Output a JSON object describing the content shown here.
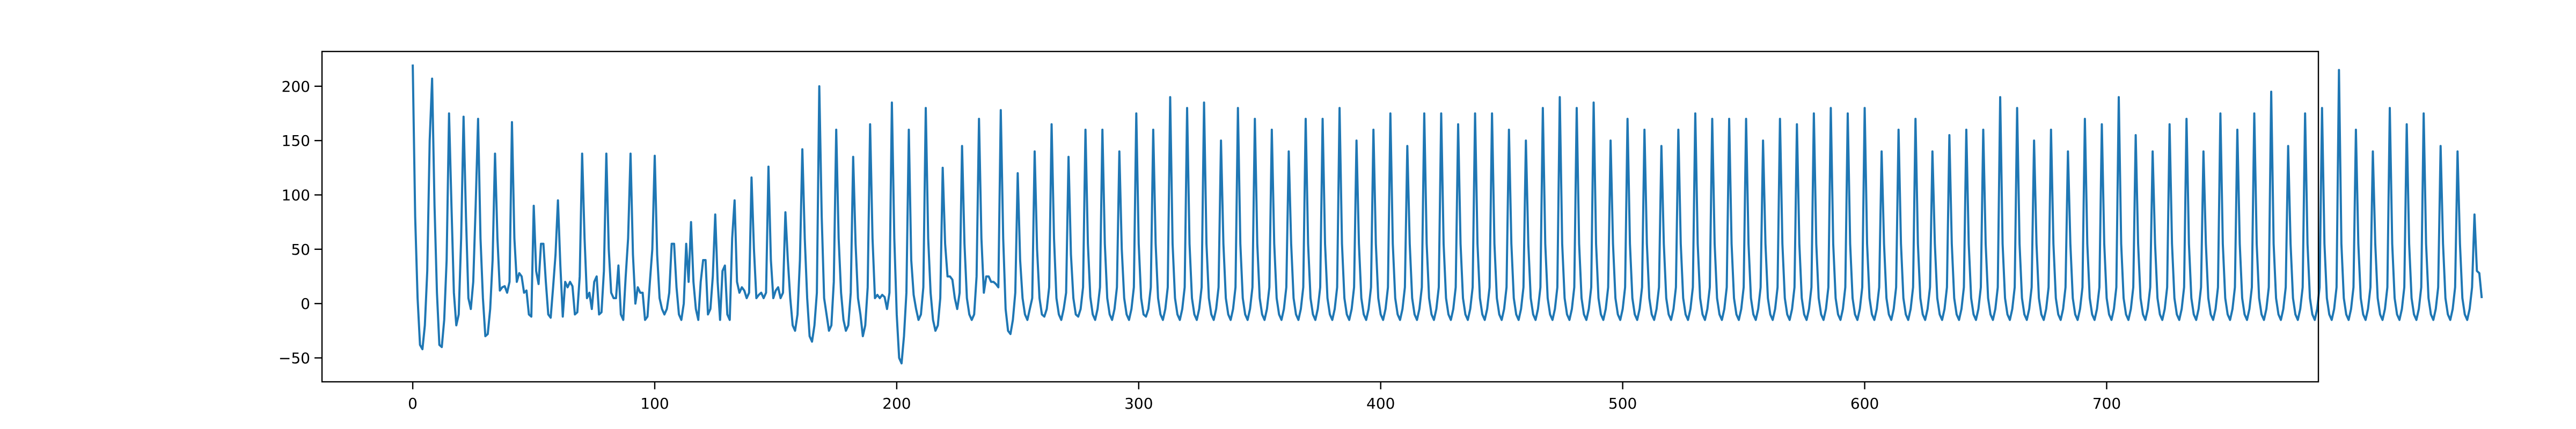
{
  "chart_data": {
    "type": "line",
    "title": "",
    "xlabel": "",
    "ylabel": "",
    "xlim": [
      -37.5,
      787.5
    ],
    "ylim": [
      -72,
      232
    ],
    "grid": false,
    "legend": "none",
    "line_color": "#1f77b4",
    "x_ticks": [
      {
        "value": 0,
        "label": "0"
      },
      {
        "value": 100,
        "label": "100"
      },
      {
        "value": 200,
        "label": "200"
      },
      {
        "value": 300,
        "label": "300"
      },
      {
        "value": 400,
        "label": "400"
      },
      {
        "value": 500,
        "label": "500"
      },
      {
        "value": 600,
        "label": "600"
      },
      {
        "value": 700,
        "label": "700"
      }
    ],
    "y_ticks": [
      {
        "value": -50,
        "label": "−50"
      },
      {
        "value": 0,
        "label": "0"
      },
      {
        "value": 50,
        "label": "50"
      },
      {
        "value": 100,
        "label": "100"
      },
      {
        "value": 150,
        "label": "150"
      },
      {
        "value": 200,
        "label": "200"
      }
    ],
    "series": [
      {
        "x_start": 0,
        "x_step": 1,
        "values": [
          220,
          80,
          5,
          -38,
          -42,
          -20,
          30,
          150,
          207,
          90,
          10,
          -38,
          -40,
          -15,
          40,
          175,
          90,
          10,
          -20,
          -10,
          60,
          172,
          80,
          5,
          -5,
          20,
          90,
          170,
          60,
          5,
          -30,
          -28,
          -5,
          40,
          138,
          60,
          12,
          15,
          16,
          10,
          20,
          167,
          60,
          20,
          28,
          25,
          10,
          12,
          -10,
          -12,
          90,
          30,
          18,
          55,
          55,
          20,
          -10,
          -13,
          15,
          45,
          95,
          35,
          -12,
          20,
          15,
          20,
          16,
          -10,
          -8,
          25,
          138,
          60,
          5,
          10,
          -5,
          20,
          25,
          -10,
          -8,
          30,
          138,
          50,
          10,
          5,
          5,
          35,
          -10,
          -15,
          25,
          60,
          138,
          45,
          0,
          15,
          10,
          10,
          -15,
          -12,
          20,
          50,
          136,
          45,
          5,
          -5,
          -10,
          -5,
          10,
          55,
          55,
          15,
          -10,
          -15,
          0,
          55,
          20,
          75,
          20,
          -5,
          -15,
          20,
          40,
          40,
          -10,
          -5,
          25,
          82,
          20,
          -15,
          30,
          35,
          -10,
          -15,
          60,
          95,
          20,
          10,
          15,
          12,
          5,
          10,
          116,
          50,
          5,
          8,
          10,
          5,
          10,
          126,
          40,
          5,
          12,
          15,
          5,
          10,
          84,
          40,
          5,
          -20,
          -25,
          -10,
          40,
          142,
          60,
          5,
          -30,
          -35,
          -20,
          10,
          200,
          80,
          5,
          -10,
          -25,
          -20,
          20,
          160,
          60,
          10,
          -15,
          -25,
          -20,
          10,
          135,
          55,
          5,
          -10,
          -30,
          -20,
          15,
          165,
          60,
          5,
          8,
          5,
          8,
          6,
          -5,
          10,
          185,
          60,
          -10,
          -50,
          -55,
          -30,
          10,
          160,
          40,
          8,
          -5,
          -15,
          -10,
          15,
          180,
          60,
          10,
          -15,
          -25,
          -20,
          5,
          125,
          55,
          25,
          25,
          22,
          5,
          -5,
          10,
          145,
          55,
          5,
          -10,
          -15,
          -10,
          25,
          170,
          60,
          10,
          25,
          25,
          20,
          20,
          18,
          15,
          178,
          60,
          -5,
          -25,
          -28,
          -15,
          10,
          120,
          40,
          5,
          -10,
          -15,
          -5,
          5,
          140,
          50,
          5,
          -10,
          -12,
          -5,
          15,
          165,
          60,
          5,
          -10,
          -15,
          -5,
          10,
          135,
          45,
          5,
          -10,
          -12,
          -5,
          15,
          160,
          55,
          6,
          -10,
          -15,
          -5,
          15,
          160,
          55,
          5,
          -10,
          -15,
          -5,
          15,
          140,
          50,
          5,
          -10,
          -15,
          -5,
          15,
          175,
          55,
          5,
          -10,
          -12,
          -5,
          15,
          160,
          55,
          5,
          -10,
          -15,
          -5,
          15,
          190,
          55,
          5,
          -10,
          -15,
          -5,
          15,
          180,
          55,
          5,
          -10,
          -15,
          -5,
          15,
          185,
          55,
          5,
          -10,
          -15,
          -5,
          15,
          150,
          55,
          5,
          -10,
          -15,
          -5,
          15,
          180,
          55,
          5,
          -10,
          -15,
          -5,
          15,
          170,
          55,
          5,
          -10,
          -15,
          -5,
          15,
          160,
          55,
          5,
          -10,
          -15,
          -5,
          15,
          140,
          55,
          5,
          -10,
          -15,
          -5,
          15,
          170,
          55,
          5,
          -10,
          -15,
          -5,
          15,
          170,
          55,
          5,
          -10,
          -15,
          -5,
          15,
          180,
          55,
          5,
          -10,
          -15,
          -5,
          15,
          150,
          55,
          5,
          -10,
          -15,
          -5,
          15,
          160,
          55,
          5,
          -10,
          -15,
          -5,
          15,
          175,
          55,
          5,
          -10,
          -15,
          -5,
          15,
          145,
          55,
          5,
          -10,
          -15,
          -5,
          15,
          175,
          55,
          5,
          -10,
          -15,
          -5,
          15,
          175,
          55,
          5,
          -10,
          -15,
          -5,
          15,
          165,
          55,
          5,
          -10,
          -15,
          -5,
          15,
          175,
          55,
          5,
          -10,
          -15,
          -5,
          15,
          175,
          55,
          5,
          -10,
          -15,
          -5,
          15,
          160,
          55,
          5,
          -10,
          -15,
          -5,
          15,
          150,
          55,
          5,
          -10,
          -15,
          -5,
          15,
          180,
          55,
          5,
          -10,
          -15,
          -5,
          15,
          190,
          55,
          5,
          -10,
          -15,
          -5,
          15,
          180,
          55,
          5,
          -10,
          -15,
          -5,
          15,
          185,
          55,
          5,
          -10,
          -15,
          -5,
          15,
          150,
          55,
          5,
          -10,
          -15,
          -5,
          15,
          170,
          55,
          5,
          -10,
          -15,
          -5,
          15,
          160,
          55,
          5,
          -10,
          -15,
          -5,
          15,
          145,
          55,
          5,
          -10,
          -15,
          -5,
          15,
          160,
          55,
          5,
          -10,
          -15,
          -5,
          15,
          175,
          55,
          5,
          -10,
          -15,
          -5,
          15,
          170,
          55,
          5,
          -10,
          -15,
          -5,
          15,
          170,
          55,
          5,
          -10,
          -15,
          -5,
          15,
          170,
          55,
          5,
          -10,
          -15,
          -5,
          15,
          150,
          55,
          5,
          -10,
          -15,
          -5,
          15,
          170,
          55,
          5,
          -10,
          -15,
          -5,
          15,
          165,
          55,
          5,
          -10,
          -15,
          -5,
          15,
          175,
          55,
          5,
          -10,
          -15,
          -5,
          15,
          180,
          55,
          5,
          -10,
          -15,
          -5,
          15,
          175,
          55,
          5,
          -10,
          -15,
          -5,
          15,
          180,
          55,
          5,
          -10,
          -15,
          -5,
          15,
          140,
          55,
          5,
          -10,
          -15,
          -5,
          15,
          160,
          55,
          5,
          -10,
          -15,
          -5,
          15,
          170,
          55,
          5,
          -10,
          -15,
          -5,
          15,
          140,
          55,
          5,
          -10,
          -15,
          -5,
          15,
          155,
          55,
          5,
          -10,
          -15,
          -5,
          15,
          160,
          55,
          5,
          -10,
          -15,
          -5,
          15,
          160,
          55,
          5,
          -10,
          -15,
          -5,
          15,
          190,
          55,
          5,
          -10,
          -15,
          -5,
          15,
          180,
          55,
          5,
          -10,
          -15,
          -5,
          15,
          150,
          55,
          5,
          -10,
          -15,
          -5,
          15,
          160,
          55,
          5,
          -10,
          -15,
          -5,
          15,
          140,
          55,
          5,
          -10,
          -15,
          -5,
          15,
          170,
          55,
          5,
          -10,
          -15,
          -5,
          15,
          165,
          55,
          5,
          -10,
          -15,
          -5,
          15,
          190,
          55,
          5,
          -10,
          -15,
          -5,
          15,
          155,
          55,
          5,
          -10,
          -15,
          -5,
          15,
          140,
          55,
          5,
          -10,
          -15,
          -5,
          15,
          165,
          55,
          5,
          -10,
          -15,
          -5,
          15,
          170,
          55,
          5,
          -10,
          -15,
          -5,
          15,
          140,
          55,
          5,
          -10,
          -15,
          -5,
          15,
          175,
          55,
          5,
          -10,
          -15,
          -5,
          15,
          160,
          55,
          5,
          -10,
          -15,
          -5,
          15,
          175,
          55,
          5,
          -10,
          -15,
          -5,
          15,
          195,
          55,
          5,
          -10,
          -15,
          -5,
          15,
          145,
          55,
          5,
          -10,
          -15,
          -5,
          15,
          175,
          55,
          5,
          -10,
          -15,
          -5,
          15,
          180,
          55,
          5,
          -10,
          -15,
          -5,
          15,
          215,
          55,
          5,
          -10,
          -15,
          -5,
          15,
          160,
          55,
          5,
          -10,
          -15,
          -5,
          15,
          140,
          55,
          5,
          -10,
          -15,
          -5,
          15,
          180,
          55,
          5,
          -10,
          -15,
          -5,
          15,
          165,
          55,
          5,
          -10,
          -15,
          -5,
          15,
          175,
          55,
          5,
          -10,
          -15,
          -5,
          15,
          145,
          55,
          5,
          -10,
          -15,
          -5,
          15,
          140,
          55,
          5,
          -10,
          -15,
          -5,
          15,
          82,
          30,
          28,
          5
        ]
      }
    ]
  }
}
